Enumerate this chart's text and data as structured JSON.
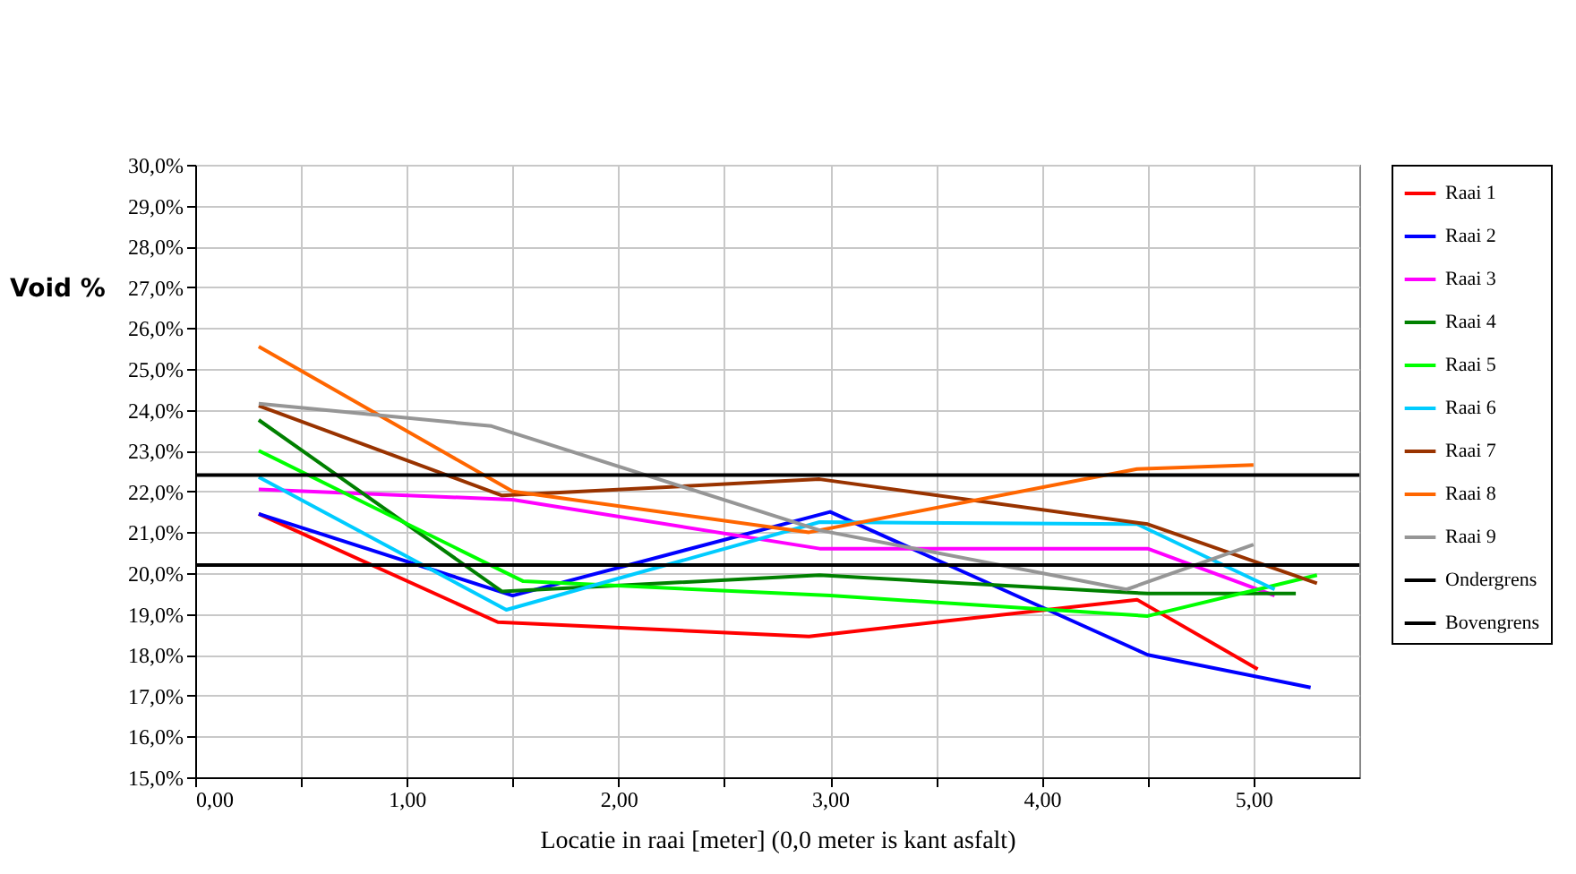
{
  "chart_data": {
    "type": "line",
    "xlabel": "Locatie in raai [meter] (0,0 meter is kant asfalt)",
    "ylabel": "Void %",
    "xlim": [
      0,
      5.5
    ],
    "xticks": [
      {
        "value": 0,
        "label": "0,00"
      },
      {
        "value": 0.5,
        "label": null
      },
      {
        "value": 1,
        "label": "1,00"
      },
      {
        "value": 1.5,
        "label": null
      },
      {
        "value": 2,
        "label": "2,00"
      },
      {
        "value": 2.5,
        "label": null
      },
      {
        "value": 3,
        "label": "3,00"
      },
      {
        "value": 3.5,
        "label": null
      },
      {
        "value": 4,
        "label": "4,00"
      },
      {
        "value": 4.5,
        "label": null
      },
      {
        "value": 5,
        "label": "5,00"
      }
    ],
    "ylim": [
      15,
      30
    ],
    "yticks": [
      {
        "value": 15,
        "label": "15,0%"
      },
      {
        "value": 16,
        "label": "16,0%"
      },
      {
        "value": 17,
        "label": "17,0%"
      },
      {
        "value": 18,
        "label": "18,0%"
      },
      {
        "value": 19,
        "label": "19,0%"
      },
      {
        "value": 20,
        "label": "20,0%"
      },
      {
        "value": 21,
        "label": "21,0%"
      },
      {
        "value": 22,
        "label": "22,0%"
      },
      {
        "value": 23,
        "label": "23,0%"
      },
      {
        "value": 24,
        "label": "24,0%"
      },
      {
        "value": 25,
        "label": "25,0%"
      },
      {
        "value": 26,
        "label": "26,0%"
      },
      {
        "value": 27,
        "label": "27,0%"
      },
      {
        "value": 28,
        "label": "28,0%"
      },
      {
        "value": 29,
        "label": "29,0%"
      },
      {
        "value": 30,
        "label": "30,0%"
      }
    ],
    "grid": true,
    "legend": "right",
    "series": [
      {
        "name": "Raai 1",
        "color": "#ff0000",
        "x": [
          0.3,
          1.43,
          2.9,
          4.45,
          5.02
        ],
        "values": [
          21.45,
          18.8,
          18.45,
          19.35,
          17.65
        ]
      },
      {
        "name": "Raai 2",
        "color": "#0000ff",
        "x": [
          0.3,
          1.5,
          3.0,
          4.5,
          5.27
        ],
        "values": [
          21.45,
          19.45,
          21.5,
          18.0,
          17.2
        ]
      },
      {
        "name": "Raai 3",
        "color": "#ff00ff",
        "x": [
          0.3,
          1.5,
          2.95,
          4.5,
          5.1
        ],
        "values": [
          22.05,
          21.8,
          20.6,
          20.6,
          19.45
        ]
      },
      {
        "name": "Raai 4",
        "color": "#008000",
        "x": [
          0.3,
          1.45,
          2.95,
          4.5,
          5.2
        ],
        "values": [
          23.75,
          19.55,
          19.95,
          19.5,
          19.5
        ]
      },
      {
        "name": "Raai 5",
        "color": "#00ff00",
        "x": [
          0.3,
          1.55,
          3.0,
          4.5,
          5.3
        ],
        "values": [
          23.0,
          19.8,
          19.45,
          18.95,
          19.95
        ]
      },
      {
        "name": "Raai 6",
        "color": "#00ccff",
        "x": [
          0.3,
          1.47,
          2.95,
          4.45,
          5.1
        ],
        "values": [
          22.35,
          19.1,
          21.25,
          21.2,
          19.6
        ]
      },
      {
        "name": "Raai 7",
        "color": "#993300",
        "x": [
          0.3,
          1.45,
          2.95,
          4.5,
          5.3
        ],
        "values": [
          24.1,
          21.9,
          22.3,
          21.2,
          19.75
        ]
      },
      {
        "name": "Raai 8",
        "color": "#ff6600",
        "x": [
          0.3,
          1.5,
          2.9,
          4.45,
          5.0
        ],
        "values": [
          25.55,
          22.0,
          21.0,
          22.55,
          22.65
        ]
      },
      {
        "name": "Raai 9",
        "color": "#969696",
        "x": [
          0.3,
          1.4,
          2.95,
          4.4,
          5.0
        ],
        "values": [
          24.15,
          23.6,
          21.05,
          19.6,
          20.7
        ]
      },
      {
        "name": "Ondergrens",
        "color": "#000000",
        "x": [
          0,
          5.5
        ],
        "values": [
          22.4,
          22.4
        ]
      },
      {
        "name": "Bovengrens",
        "color": "#000000",
        "x": [
          0,
          5.5
        ],
        "values": [
          20.2,
          20.2
        ]
      }
    ]
  }
}
